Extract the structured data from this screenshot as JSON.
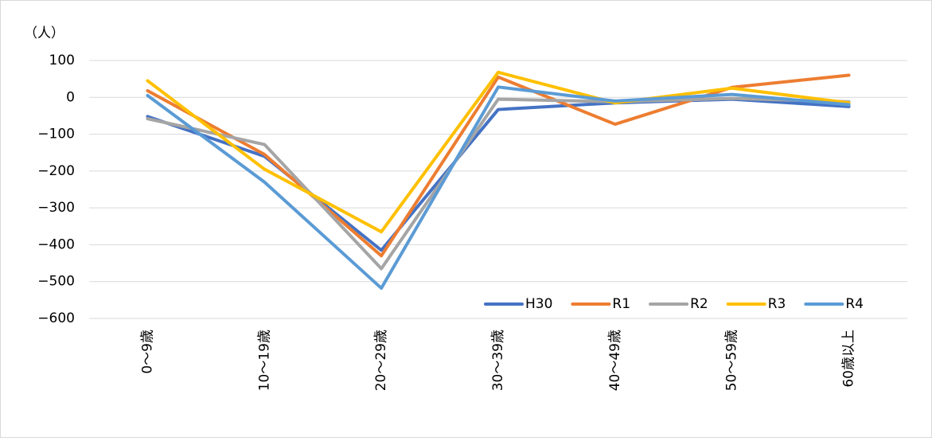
{
  "chart_data": {
    "type": "line",
    "y_unit": "（人）",
    "categories": [
      "0～9歳",
      "10～19歳",
      "20～29歳",
      "30～39歳",
      "40～49歳",
      "50～59歳",
      "60歳以上"
    ],
    "series": [
      {
        "name": "H30",
        "color": "#4472c4",
        "values": [
          -52,
          -160,
          -415,
          -33,
          -15,
          -5,
          -25
        ]
      },
      {
        "name": "R1",
        "color": "#ed7d31",
        "values": [
          18,
          -155,
          -430,
          55,
          -73,
          27,
          60
        ]
      },
      {
        "name": "R2",
        "color": "#a5a5a5",
        "values": [
          -58,
          -128,
          -465,
          -5,
          -12,
          -3,
          -12
        ]
      },
      {
        "name": "R3",
        "color": "#ffc000",
        "values": [
          45,
          -195,
          -365,
          68,
          -15,
          25,
          -15
        ]
      },
      {
        "name": "R4",
        "color": "#5b9bd5",
        "values": [
          5,
          -230,
          -518,
          28,
          -10,
          8,
          -20
        ]
      }
    ],
    "ylim": [
      -600,
      100
    ],
    "yticks": [
      100,
      0,
      {
        "value": -100,
        "label": "−100"
      },
      {
        "value": -200,
        "label": "−200"
      },
      {
        "value": -300,
        "label": "−300"
      },
      {
        "value": -400,
        "label": "−400"
      },
      {
        "value": -500,
        "label": "−500"
      },
      {
        "value": -600,
        "label": "−600"
      }
    ],
    "grid": true,
    "legend": "lower right"
  }
}
